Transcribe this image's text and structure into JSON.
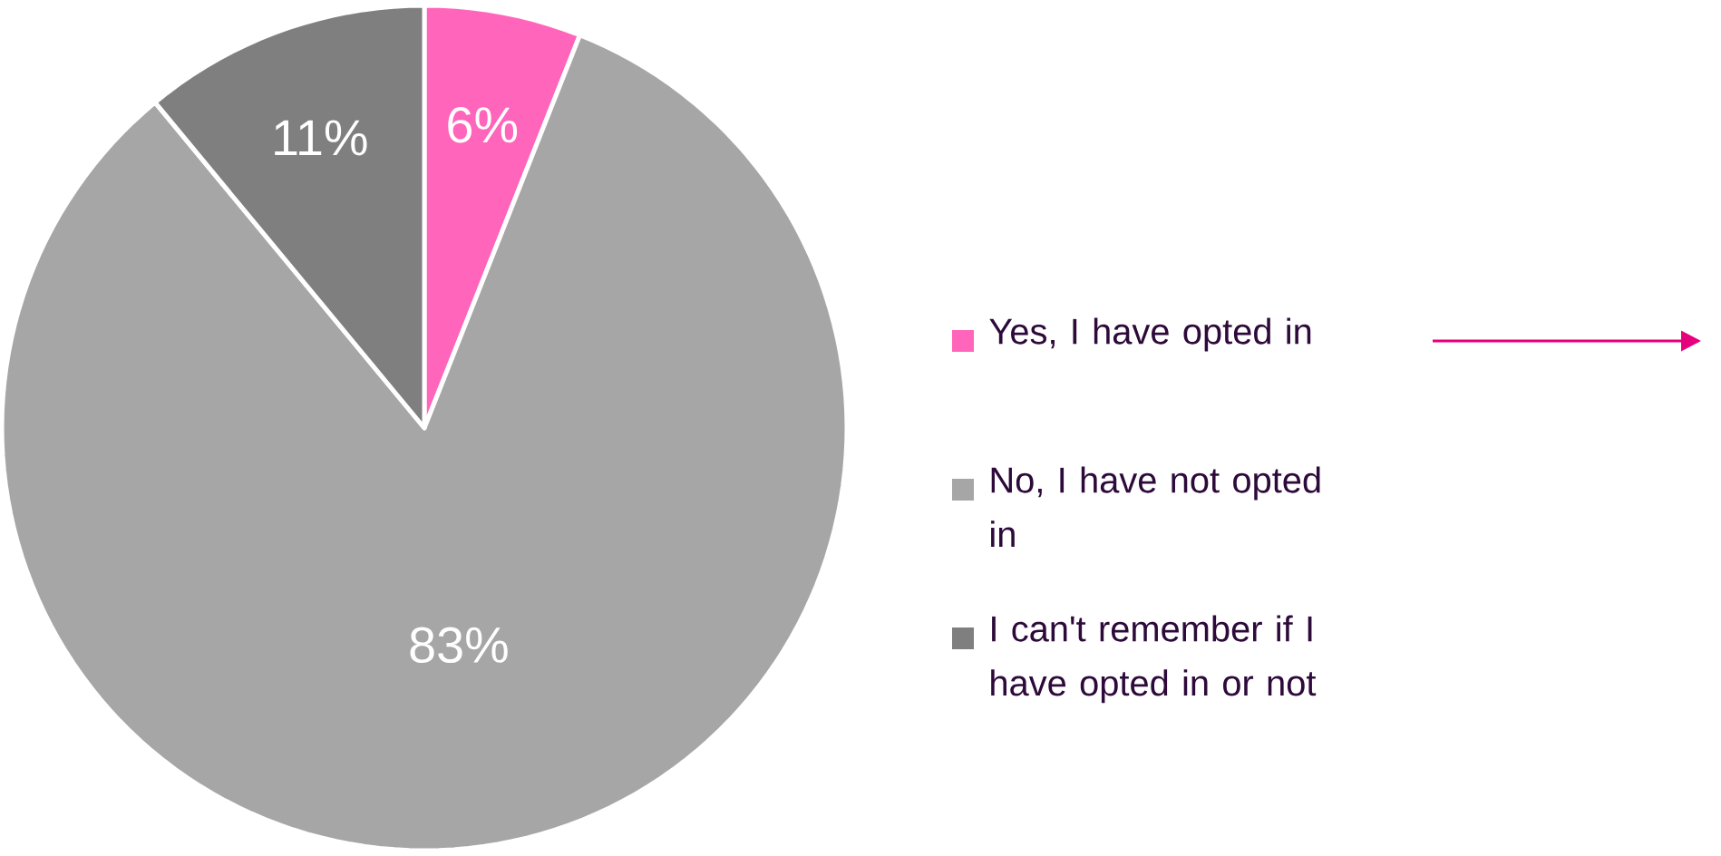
{
  "chart_data": {
    "type": "pie",
    "categories": [
      "Yes, I have opted in",
      "No, I have not opted in",
      "I can't remember if I have opted in or not"
    ],
    "values": [
      6,
      83,
      11
    ],
    "value_labels": [
      "6%",
      "83%",
      "11%"
    ],
    "colors": [
      "#ff66bb",
      "#a6a6a6",
      "#7f7f7f"
    ],
    "legend": "right"
  }
}
